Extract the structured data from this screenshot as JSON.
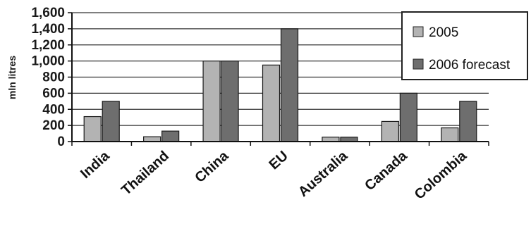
{
  "chart_data": {
    "type": "bar",
    "categories": [
      "India",
      "Thailand",
      "China",
      "EU",
      "Australia",
      "Canada",
      "Colombia"
    ],
    "series": [
      {
        "name": "2005",
        "values": [
          310,
          60,
          1000,
          950,
          55,
          250,
          170
        ],
        "color": "#b3b3b3"
      },
      {
        "name": "2006 forecast",
        "values": [
          500,
          130,
          1000,
          1400,
          55,
          600,
          500
        ],
        "color": "#6e6e6e"
      }
    ],
    "ylabel": "mln litres",
    "ylim": [
      0,
      1600
    ],
    "yticks": [
      "0",
      "200",
      "400",
      "600",
      "800",
      "1,000",
      "1,200",
      "1,400",
      "1,600"
    ],
    "grid": true,
    "legend_position": "right"
  }
}
